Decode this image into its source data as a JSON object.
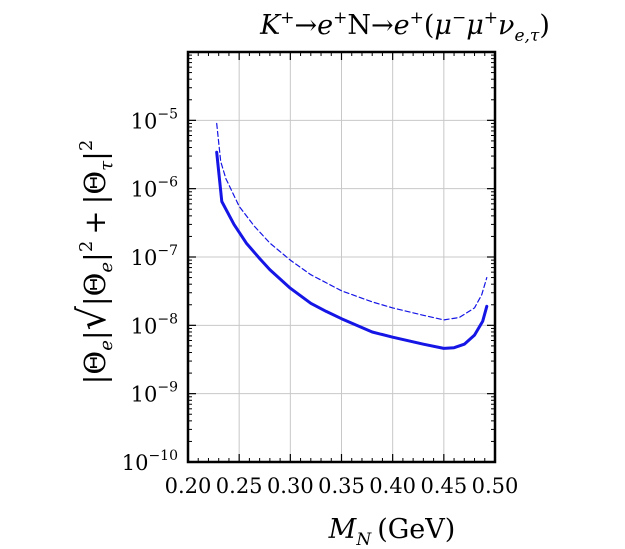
{
  "chart_data": {
    "type": "line",
    "title": "K⁺→e⁺N→e⁺(μ⁻μ⁺ν_{e,τ})",
    "title_parts": {
      "k": "K",
      "k_sup": "+",
      "arrow1": "→",
      "e1": "e",
      "e1_sup": "+",
      "n": "N",
      "arrow2": "→",
      "e2": "e",
      "e2_sup": "+",
      "open": "(",
      "mu1": "μ",
      "mu1_sup": "−",
      "mu2": "μ",
      "mu2_sup": "+",
      "nu": "ν",
      "nu_sub": "e,τ",
      "close": ")"
    },
    "xlabel": "M_N (GeV)",
    "xlabel_parts": {
      "m": "M",
      "m_sub": "N",
      "unit": "(GeV)"
    },
    "ylabel": "|Θ_e|√(|Θ_e|² + |Θ_τ|²)",
    "ylabel_parts": {
      "pre": "|Θ",
      "pre_sub": "e",
      "pre_bar": "|",
      "a": "|Θ",
      "a_sub": "e",
      "a_bar": "|",
      "a_sup": "2",
      "plus": "+",
      "b": "|Θ",
      "b_sub": "τ",
      "b_bar": "|",
      "b_sup": "2"
    },
    "xlim": [
      0.2,
      0.5
    ],
    "ylim": [
      1e-10,
      0.0001
    ],
    "y_scale": "log",
    "x_ticks": [
      "0.20",
      "0.25",
      "0.30",
      "0.35",
      "0.40",
      "0.45",
      "0.50"
    ],
    "y_ticks": [
      {
        "base": "10",
        "exp": "−10"
      },
      {
        "base": "10",
        "exp": "−9"
      },
      {
        "base": "10",
        "exp": "−8"
      },
      {
        "base": "10",
        "exp": "−7"
      },
      {
        "base": "10",
        "exp": "−6"
      },
      {
        "base": "10",
        "exp": "−5"
      }
    ],
    "grid": true,
    "color": "#1515e6",
    "series": [
      {
        "style": "solid",
        "x": [
          0.228,
          0.233,
          0.245,
          0.257,
          0.27,
          0.28,
          0.3,
          0.32,
          0.335,
          0.35,
          0.38,
          0.4,
          0.43,
          0.45,
          0.46,
          0.47,
          0.48,
          0.488,
          0.492
        ],
        "y": [
          3.4e-06,
          6.5e-07,
          3e-07,
          1.6e-07,
          9.5e-08,
          6.5e-08,
          3.5e-08,
          2.1e-08,
          1.6e-08,
          1.25e-08,
          8e-09,
          6.7e-09,
          5.3e-09,
          4.6e-09,
          4.7e-09,
          5.3e-09,
          7.2e-09,
          1.15e-08,
          1.9e-08
        ]
      },
      {
        "style": "dashed",
        "x": [
          0.228,
          0.232,
          0.237,
          0.25,
          0.265,
          0.28,
          0.3,
          0.32,
          0.35,
          0.38,
          0.4,
          0.43,
          0.45,
          0.465,
          0.48,
          0.487,
          0.492
        ],
        "y": [
          9e-06,
          2.5e-06,
          1.4e-06,
          5.5e-07,
          2.8e-07,
          1.6e-07,
          9e-08,
          5.5e-08,
          3.2e-08,
          2.2e-08,
          1.8e-08,
          1.4e-08,
          1.2e-08,
          1.3e-08,
          1.8e-08,
          2.8e-08,
          5e-08
        ]
      }
    ]
  }
}
